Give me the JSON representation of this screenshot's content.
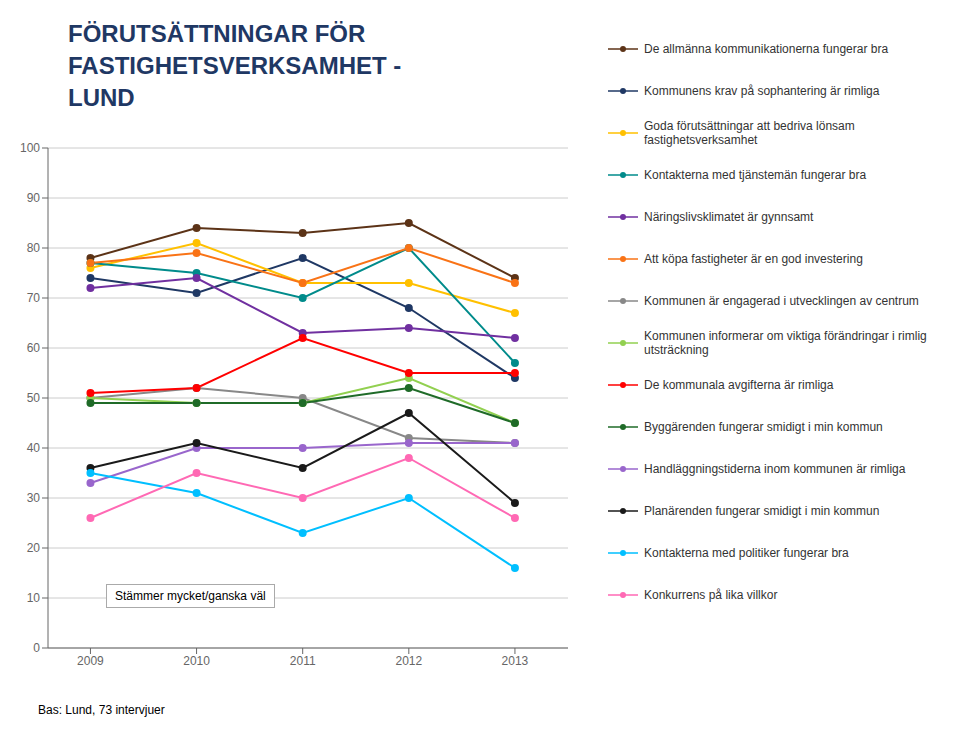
{
  "chart_data": {
    "type": "line",
    "title": "FÖRUTSÄTTNINGAR FÖR\nFASTIGHETSVERKSAMHET -\nLUND",
    "annotations": [
      "Stämmer mycket/ganska väl",
      "Bas: Lund, 73 intervjuer"
    ],
    "x": [
      2009,
      2010,
      2011,
      2012,
      2013
    ],
    "xlim": [
      2008.6,
      2013.5
    ],
    "xticks": [
      2009,
      2010,
      2011,
      2012,
      2013
    ],
    "ylim": [
      0,
      100
    ],
    "yticks": [
      0,
      10,
      20,
      30,
      40,
      50,
      60,
      70,
      80,
      90,
      100
    ],
    "grid": "y",
    "legend": "right",
    "marker": "circle",
    "title_color": "#1F3864",
    "series": [
      {
        "name": "De allmänna kommunikationerna fungerar bra",
        "color": "#5C3317",
        "values": [
          78,
          84,
          83,
          85,
          74
        ]
      },
      {
        "name": "Kommunens krav på sophantering är rimliga",
        "color": "#1F3864",
        "values": [
          74,
          71,
          78,
          68,
          54
        ]
      },
      {
        "name": "Goda förutsättningar att bedriva lönsam fastighetsverksamhet",
        "color": "#FFC000",
        "values": [
          76,
          81,
          73,
          73,
          67
        ]
      },
      {
        "name": "Kontakterna med tjänstemän fungerar bra",
        "color": "#008B8B",
        "values": [
          77,
          75,
          70,
          80,
          57
        ]
      },
      {
        "name": "Näringslivsklimatet är gynnsamt",
        "color": "#7030A0",
        "values": [
          72,
          74,
          63,
          64,
          62
        ]
      },
      {
        "name": "Att köpa fastigheter är en god investering",
        "color": "#F97316",
        "values": [
          77,
          79,
          73,
          80,
          73
        ]
      },
      {
        "name": "Kommunen är engagerad i utvecklingen av centrum",
        "color": "#888888",
        "values": [
          50,
          52,
          50,
          42,
          41
        ]
      },
      {
        "name": "Kommunen informerar om viktiga förändringar i rimlig utsträckning",
        "color": "#92D050",
        "values": [
          50,
          49,
          49,
          54,
          45
        ]
      },
      {
        "name": "De kommunala avgifterna är rimliga",
        "color": "#FF0000",
        "values": [
          51,
          52,
          62,
          55,
          55
        ]
      },
      {
        "name": "Byggärenden fungerar smidigt i min kommun",
        "color": "#1F6B28",
        "values": [
          49,
          49,
          49,
          52,
          45
        ]
      },
      {
        "name": "Handläggningstiderna inom kommunen är rimliga",
        "color": "#9966CC",
        "values": [
          33,
          40,
          40,
          41,
          41
        ]
      },
      {
        "name": "Planärenden fungerar smidigt i min kommun",
        "color": "#1A1A1A",
        "values": [
          36,
          41,
          36,
          47,
          29
        ]
      },
      {
        "name": "Kontakterna med politiker fungerar bra",
        "color": "#00BFFF",
        "values": [
          35,
          31,
          23,
          30,
          16
        ]
      },
      {
        "name": "Konkurrens på lika villkor",
        "color": "#FF69B4",
        "values": [
          26,
          35,
          30,
          38,
          26
        ]
      }
    ]
  }
}
